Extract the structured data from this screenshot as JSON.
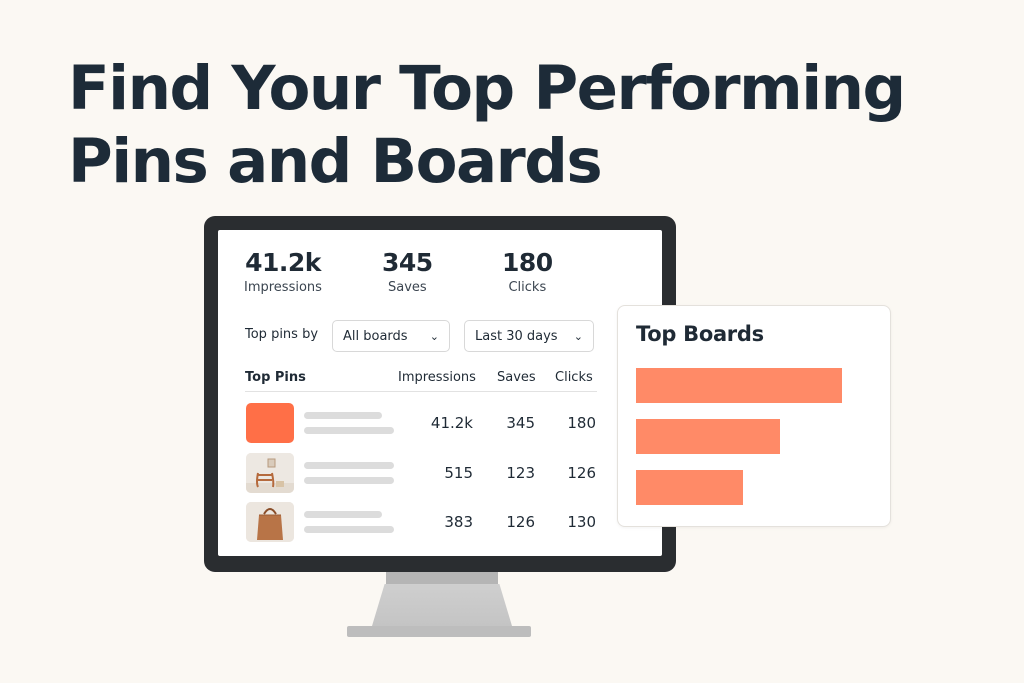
{
  "headline": {
    "line1": "Find Your Top Performing",
    "line2": "Pins and Boards"
  },
  "stats": [
    {
      "value": "41.2k",
      "label": "Impressions"
    },
    {
      "value": "345",
      "label": "Saves"
    },
    {
      "value": "180",
      "label": "Clicks"
    }
  ],
  "filters": {
    "label": "Top pins by",
    "board_select": "All boards",
    "range_select": "Last 30 days"
  },
  "table": {
    "headers": {
      "pins": "Top Pins",
      "impressions": "Impressions",
      "saves": "Saves",
      "clicks": "Clicks"
    },
    "rows": [
      {
        "impressions": "41.2k",
        "saves": "345",
        "clicks": "180"
      },
      {
        "impressions": "515",
        "saves": "123",
        "clicks": "126"
      },
      {
        "impressions": "383",
        "saves": "126",
        "clicks": "130"
      }
    ]
  },
  "top_boards": {
    "title": "Top Boards",
    "bar_values": [
      100,
      70,
      52
    ],
    "bar_color": "#ff8a67"
  },
  "colors": {
    "accent": "#ff6f47",
    "text": "#1f2a35",
    "background": "#fbf8f3"
  },
  "icons": [
    "chevron-down-icon",
    "chair-photo",
    "bag-photo"
  ]
}
